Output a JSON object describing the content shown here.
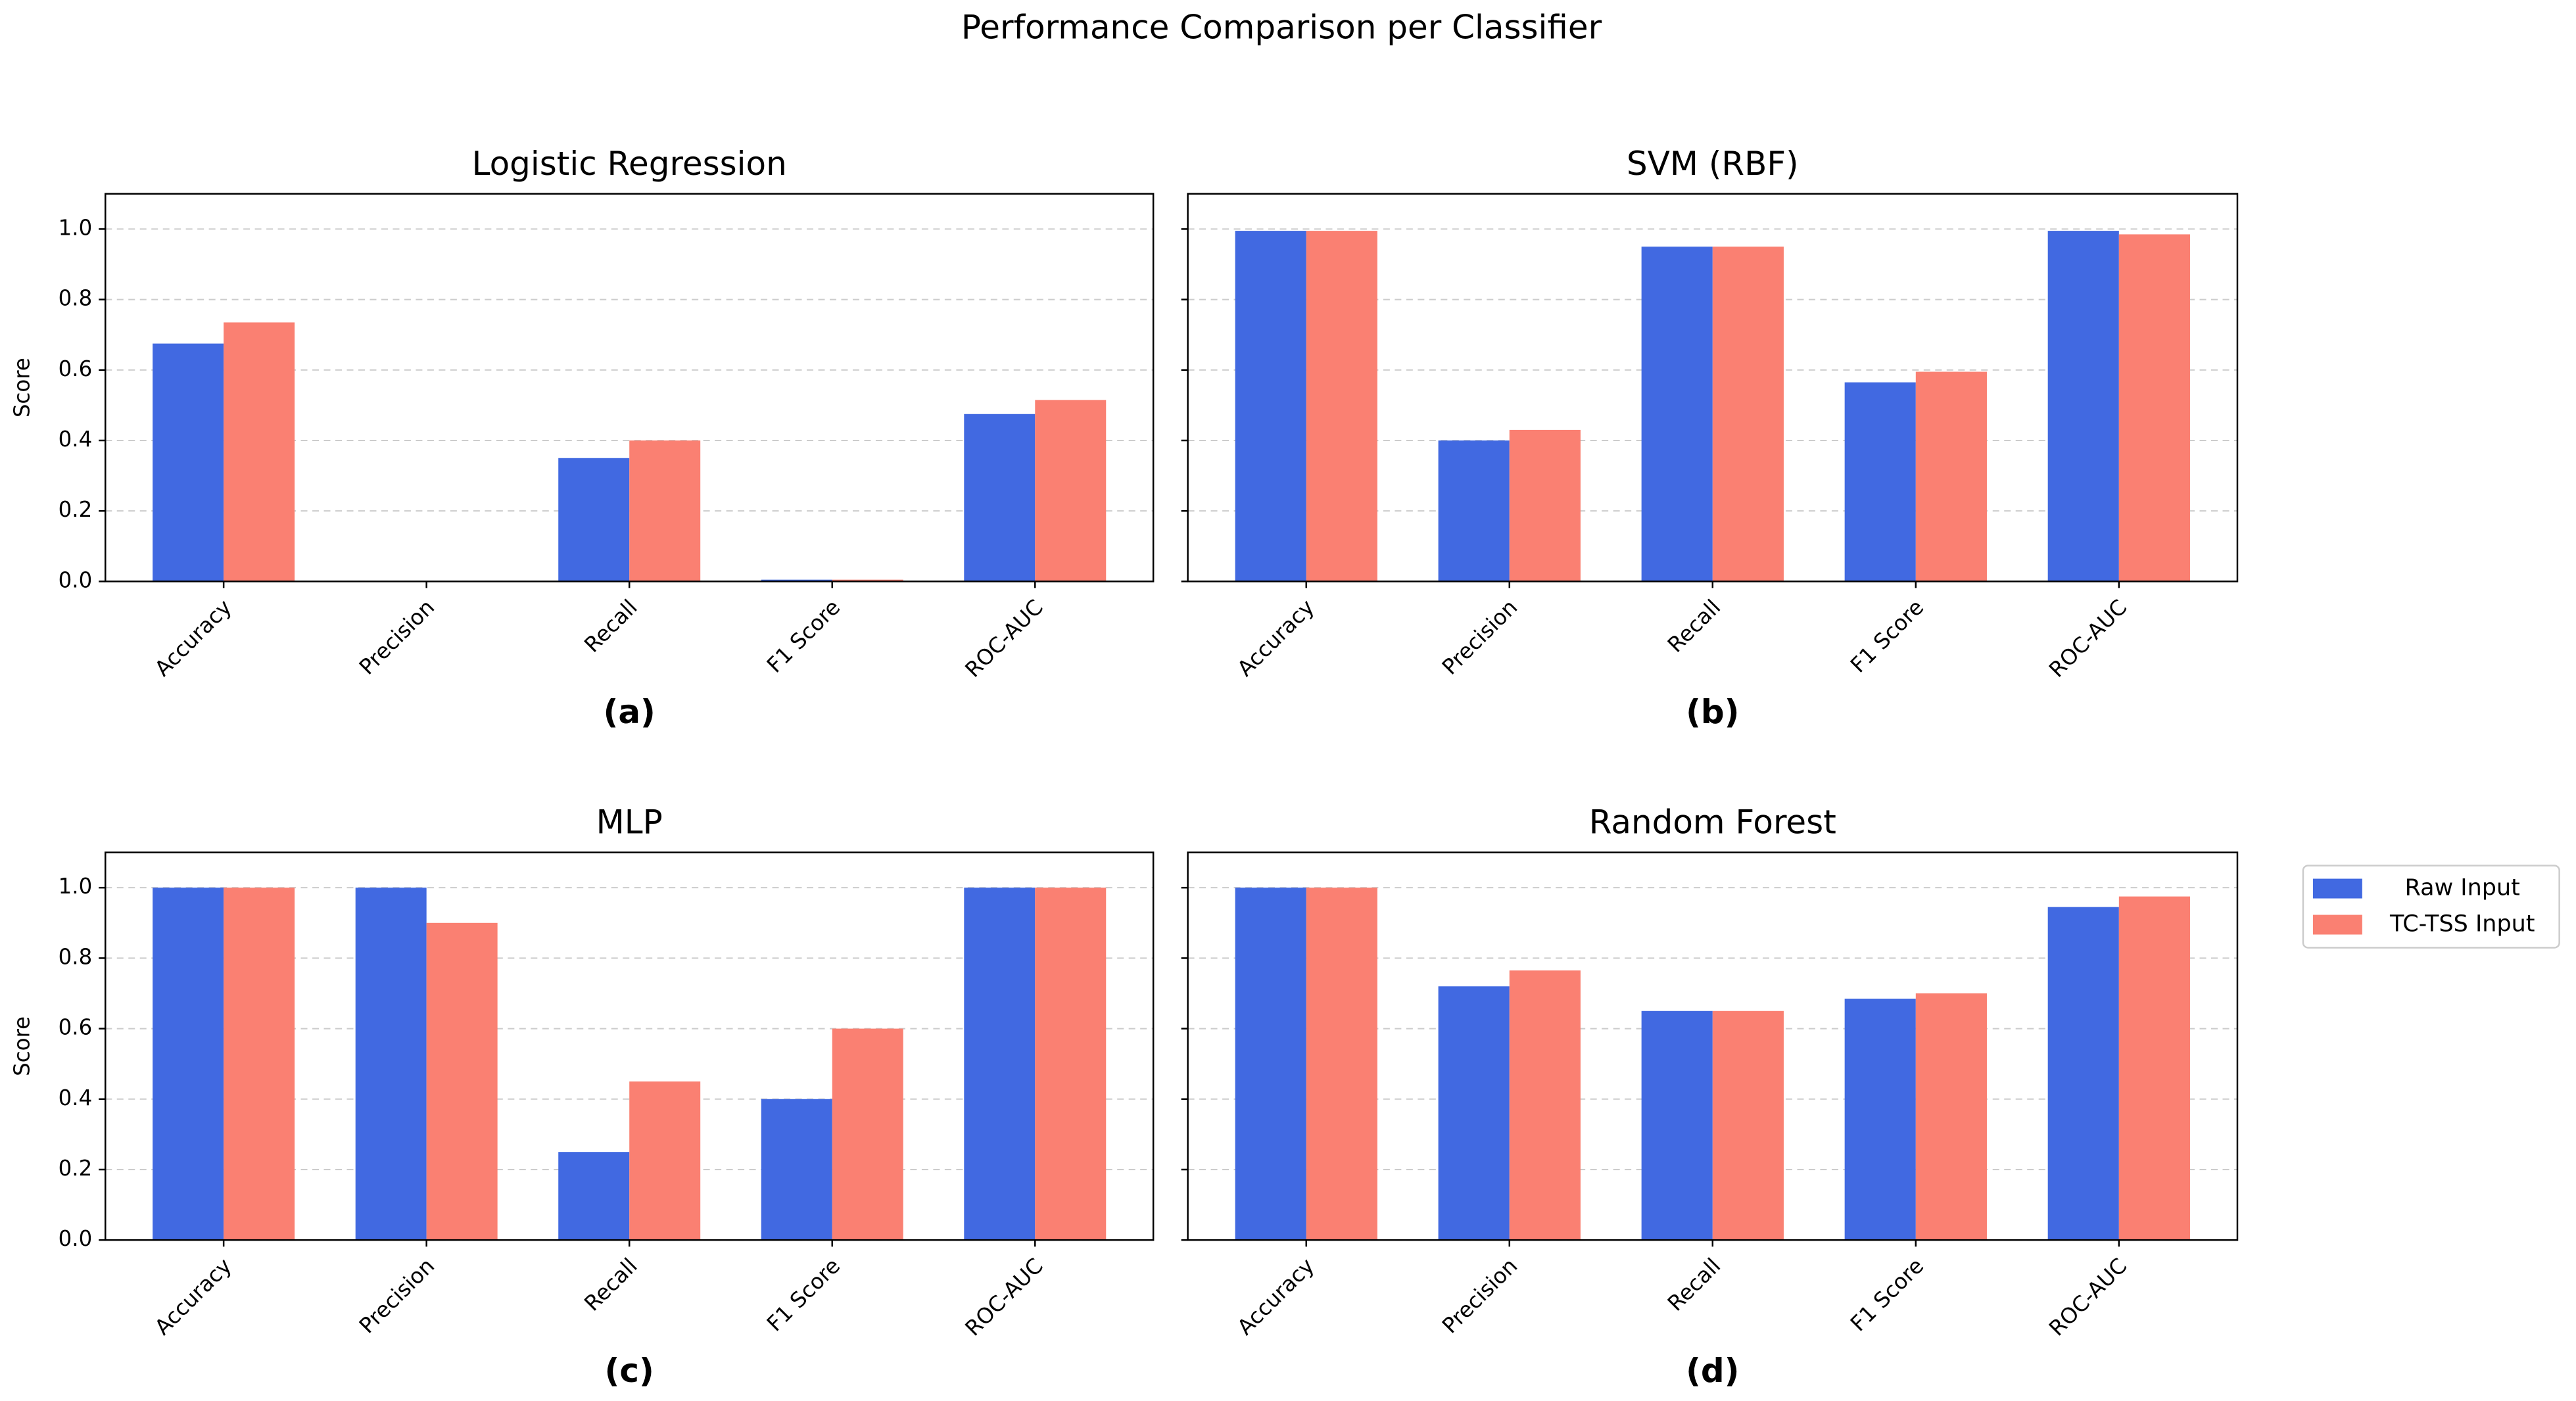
{
  "title": "Performance Comparison per Classifier",
  "chart_data": [
    {
      "type": "bar",
      "title": "Logistic Regression",
      "label": "(a)",
      "ylabel": "Score",
      "categories": [
        "Accuracy",
        "Precision",
        "Recall",
        "F1 Score",
        "ROC-AUC"
      ],
      "series": [
        {
          "color": "#4169e1",
          "values": [
            0.675,
            0,
            0.35,
            0.005,
            0.475
          ]
        },
        {
          "color": "#fa8072",
          "values": [
            0.735,
            0,
            0.4,
            0.005,
            0.515
          ]
        }
      ],
      "ylim": [
        0,
        1.1
      ],
      "yticks": [
        {
          "value": 0,
          "label": "0.0"
        },
        0.2,
        0.4,
        0.6,
        0.8,
        {
          "value": 1,
          "label": "1.0"
        }
      ],
      "grid": true
    },
    {
      "type": "bar",
      "title": "SVM (RBF)",
      "label": "(b)",
      "categories": [
        "Accuracy",
        "Precision",
        "Recall",
        "F1 Score",
        "ROC-AUC"
      ],
      "series": [
        {
          "color": "#4169e1",
          "values": [
            0.995,
            0.4,
            0.95,
            0.565,
            0.995
          ]
        },
        {
          "color": "#fa8072",
          "values": [
            0.995,
            0.43,
            0.95,
            0.595,
            0.985
          ]
        }
      ],
      "ylim": [
        0,
        1.1
      ],
      "yticks": [
        0,
        0.2,
        0.4,
        0.6,
        0.8,
        1
      ],
      "grid": true
    },
    {
      "type": "bar",
      "title": "MLP",
      "label": "(c)",
      "ylabel": "Score",
      "categories": [
        "Accuracy",
        "Precision",
        "Recall",
        "F1 Score",
        "ROC-AUC"
      ],
      "series": [
        {
          "color": "#4169e1",
          "values": [
            1.0,
            1.0,
            0.25,
            0.4,
            1.0
          ]
        },
        {
          "color": "#fa8072",
          "values": [
            1.0,
            0.9,
            0.45,
            0.6,
            1.0
          ]
        }
      ],
      "ylim": [
        0,
        1.1
      ],
      "yticks": [
        {
          "value": 0,
          "label": "0.0"
        },
        0.2,
        0.4,
        0.6,
        0.8,
        {
          "value": 1,
          "label": "1.0"
        }
      ],
      "grid": true
    },
    {
      "type": "bar",
      "title": "Random Forest",
      "label": "(d)",
      "categories": [
        "Accuracy",
        "Precision",
        "Recall",
        "F1 Score",
        "ROC-AUC"
      ],
      "series": [
        {
          "name": "Raw Input",
          "color": "#4169e1",
          "values": [
            1.0,
            0.72,
            0.65,
            0.685,
            0.945
          ]
        },
        {
          "name": "TC-TSS Input",
          "color": "#fa8072",
          "values": [
            1.0,
            0.765,
            0.65,
            0.7,
            0.975
          ]
        }
      ],
      "ylim": [
        0,
        1.1
      ],
      "yticks": [
        0,
        0.2,
        0.4,
        0.6,
        0.8,
        1
      ],
      "grid": true
    }
  ]
}
